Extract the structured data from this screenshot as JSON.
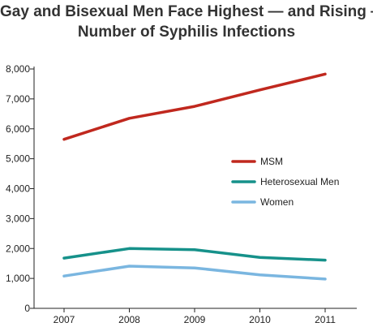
{
  "chart_data": {
    "type": "line",
    "title_lines": [
      "Gay and Bisexual Men Face Highest — and Rising —",
      "Number of Syphilis Infections"
    ],
    "x": [
      2007,
      2008,
      2009,
      2010,
      2011
    ],
    "x_tick_labels": [
      "2007",
      "2008",
      "2009",
      "2010",
      "2011"
    ],
    "y_tick_labels": [
      "0",
      "1,000",
      "2,000",
      "3,000",
      "4,000",
      "5,000",
      "6,000",
      "7,000",
      "8,000"
    ],
    "ylim": [
      0,
      8000
    ],
    "grid": false,
    "legend_position": "right",
    "series": [
      {
        "name": "MSM",
        "color": "#c0281e",
        "values": [
          5650,
          6350,
          6750,
          7300,
          7830
        ]
      },
      {
        "name": "Heterosexual Men",
        "color": "#16918a",
        "values": [
          1680,
          2000,
          1960,
          1700,
          1610
        ]
      },
      {
        "name": "Women",
        "color": "#7ab6e0",
        "values": [
          1080,
          1410,
          1350,
          1120,
          980
        ]
      }
    ]
  }
}
